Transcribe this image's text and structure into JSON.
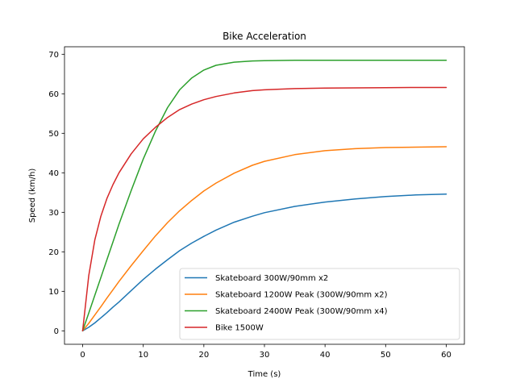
{
  "chart_data": {
    "type": "line",
    "title": "Bike Acceleration",
    "xlabel": "Time (s)",
    "ylabel": "Speed (km/h)",
    "xlim": [
      -3,
      63
    ],
    "ylim": [
      -3.4,
      71.9
    ],
    "xticks": [
      0,
      10,
      20,
      30,
      40,
      50,
      60
    ],
    "yticks": [
      0,
      10,
      20,
      30,
      40,
      50,
      60,
      70
    ],
    "grid": false,
    "legend_position": "lower-right",
    "x": [
      0,
      1,
      2,
      3,
      4,
      5,
      6,
      8,
      10,
      12,
      14,
      16,
      18,
      20,
      22,
      25,
      28,
      30,
      35,
      40,
      45,
      50,
      55,
      60
    ],
    "series": [
      {
        "name": "Skateboard 300W/90mm x2",
        "color": "#1f77b4",
        "values": [
          0,
          0.9,
          2.0,
          3.3,
          4.6,
          6.0,
          7.3,
          10.2,
          13.0,
          15.6,
          18.0,
          20.3,
          22.2,
          23.9,
          25.5,
          27.5,
          29.0,
          29.9,
          31.5,
          32.6,
          33.4,
          34.0,
          34.4,
          34.6
        ]
      },
      {
        "name": "Skateboard 1200W Peak (300W/90mm x2)",
        "color": "#ff7f0e",
        "values": [
          0,
          1.9,
          4.0,
          6.1,
          8.3,
          10.4,
          12.5,
          16.5,
          20.3,
          24.0,
          27.4,
          30.4,
          33.0,
          35.4,
          37.4,
          39.9,
          41.9,
          42.9,
          44.6,
          45.6,
          46.1,
          46.4,
          46.5,
          46.6
        ]
      },
      {
        "name": "Skateboard 2400W Peak (300W/90mm x4)",
        "color": "#2ca02c",
        "values": [
          0,
          4.5,
          9.0,
          13.5,
          18.0,
          22.5,
          27.0,
          35.5,
          43.5,
          50.5,
          56.5,
          61.0,
          64.0,
          66.0,
          67.2,
          68.0,
          68.3,
          68.4,
          68.5,
          68.5,
          68.5,
          68.5,
          68.5,
          68.5
        ]
      },
      {
        "name": "Bike 1500W",
        "color": "#d62728",
        "values": [
          0,
          14.0,
          23.0,
          29.0,
          33.5,
          37.0,
          40.0,
          44.8,
          48.6,
          51.5,
          54.0,
          56.0,
          57.4,
          58.5,
          59.3,
          60.2,
          60.8,
          61.0,
          61.3,
          61.45,
          61.5,
          61.55,
          61.6,
          61.6
        ]
      }
    ]
  }
}
